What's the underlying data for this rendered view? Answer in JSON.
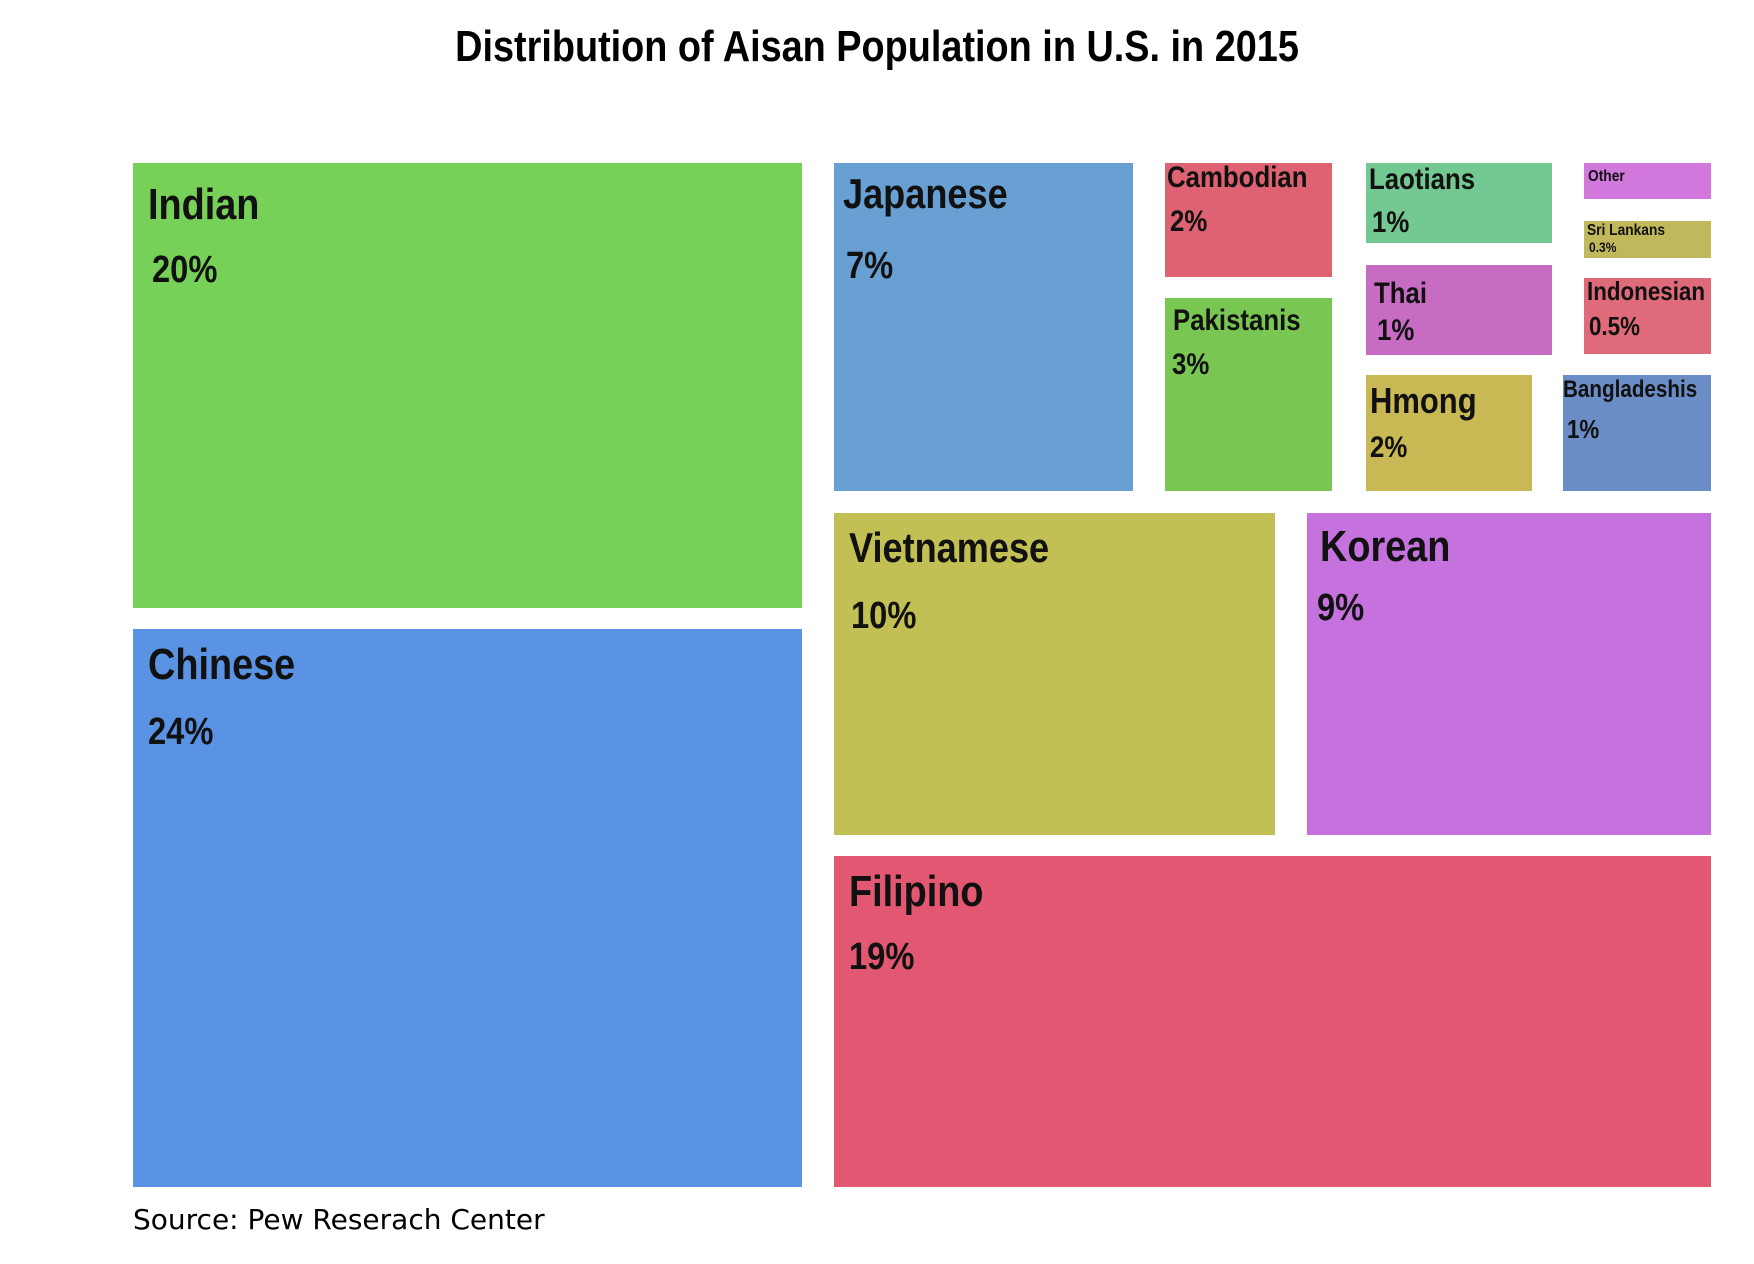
{
  "chart_data": {
    "type": "treemap",
    "title": "Distribution of Aisan Population in U.S. in 2015",
    "source": "Source: Pew Reserach Center",
    "unit": "%",
    "items": [
      {
        "label": "Chinese",
        "value": 24,
        "value_label": "24%",
        "color": "#5a93e3"
      },
      {
        "label": "Indian",
        "value": 20,
        "value_label": "20%",
        "color": "#77d057"
      },
      {
        "label": "Filipino",
        "value": 19,
        "value_label": "19%",
        "color": "#e25771"
      },
      {
        "label": "Vietnamese",
        "value": 10,
        "value_label": "10%",
        "color": "#c2c054"
      },
      {
        "label": "Korean",
        "value": 9,
        "value_label": "9%",
        "color": "#c572de"
      },
      {
        "label": "Japanese",
        "value": 7,
        "value_label": "7%",
        "color": "#68a0d4"
      },
      {
        "label": "Pakistanis",
        "value": 3,
        "value_label": "3%",
        "color": "#7ac653"
      },
      {
        "label": "Cambodian",
        "value": 2,
        "value_label": "2%",
        "color": "#de6272"
      },
      {
        "label": "Hmong",
        "value": 2,
        "value_label": "2%",
        "color": "#c9b955"
      },
      {
        "label": "Laotians",
        "value": 1,
        "value_label": "1%",
        "color": "#74c892"
      },
      {
        "label": "Thai",
        "value": 1,
        "value_label": "1%",
        "color": "#c76bc3"
      },
      {
        "label": "Bangladeshis",
        "value": 1,
        "value_label": "1%",
        "color": "#6b8dc6"
      },
      {
        "label": "Indonesian",
        "value": 0.5,
        "value_label": "0.5%",
        "color": "#de6a7a"
      },
      {
        "label": "Sri Lankans",
        "value": 0.3,
        "value_label": "0.3%",
        "color": "#c1b85c"
      },
      {
        "label": "Other",
        "value": null,
        "value_label": "",
        "color": "#d277dc"
      }
    ]
  }
}
